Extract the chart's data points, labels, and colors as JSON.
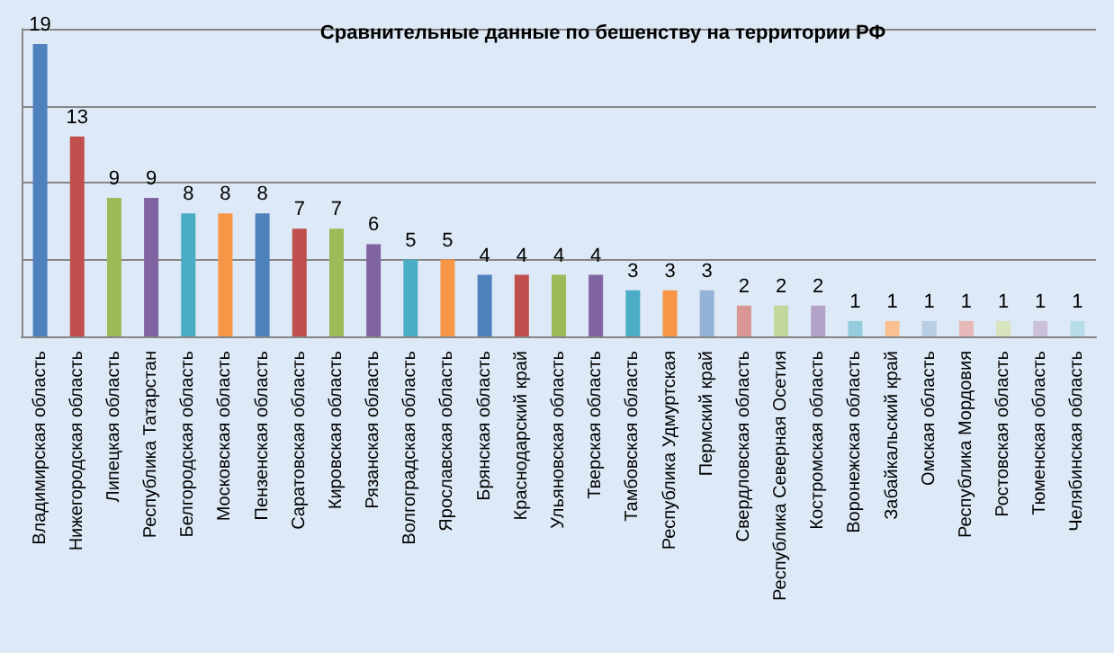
{
  "chart_data": {
    "type": "bar",
    "title": "Сравнительные данные по бешенству на территории РФ",
    "categories": [
      "Владимирская область",
      "Нижегородская область",
      "Липецкая область",
      "Республика Татарстан",
      "Белгородская область",
      "Московская область",
      "Пензенская область",
      "Саратовская область",
      "Кировская область",
      "Рязанская область",
      "Волгоградская область",
      "Ярославская область",
      "Брянская область",
      "Краснодарский край",
      "Ульяновская область",
      "Тверская область",
      "Тамбовская область",
      "Республика Удмуртская",
      "Пермский край",
      "Свердловская область",
      "Республика Северная Осетия",
      "Костромская область",
      "Воронежская область",
      "Забайкальский край",
      "Омская область",
      "Республика Мордовия",
      "Ростовская область",
      "Тюменская область",
      "Челябинская область"
    ],
    "values": [
      19,
      13,
      9,
      9,
      8,
      8,
      8,
      7,
      7,
      6,
      5,
      5,
      4,
      4,
      4,
      4,
      3,
      3,
      3,
      2,
      2,
      2,
      1,
      1,
      1,
      1,
      1,
      1,
      1
    ],
    "colors": [
      "#4f81bd",
      "#c0504d",
      "#9bbb59",
      "#8064a2",
      "#4bacc6",
      "#f79646",
      "#4f81bd",
      "#c0504d",
      "#9bbb59",
      "#8064a2",
      "#4bacc6",
      "#f79646",
      "#4f81bd",
      "#c0504d",
      "#9bbb59",
      "#8064a2",
      "#4bacc6",
      "#f79646",
      "#95b3d7",
      "#d99694",
      "#c3d69b",
      "#b3a2c7",
      "#93cddd",
      "#fac090",
      "#b9cde5",
      "#e6b9b8",
      "#d7e4bd",
      "#ccc1da",
      "#b7dde8"
    ],
    "ylim": [
      0,
      20
    ],
    "yticks": [
      {
        "value": 0,
        "label": null
      },
      {
        "value": 5,
        "label": null
      },
      {
        "value": 10,
        "label": null
      },
      {
        "value": 15,
        "label": null
      },
      {
        "value": 20,
        "label": null
      }
    ],
    "grid": "y",
    "tick_labels": "x",
    "data_labels": true
  }
}
